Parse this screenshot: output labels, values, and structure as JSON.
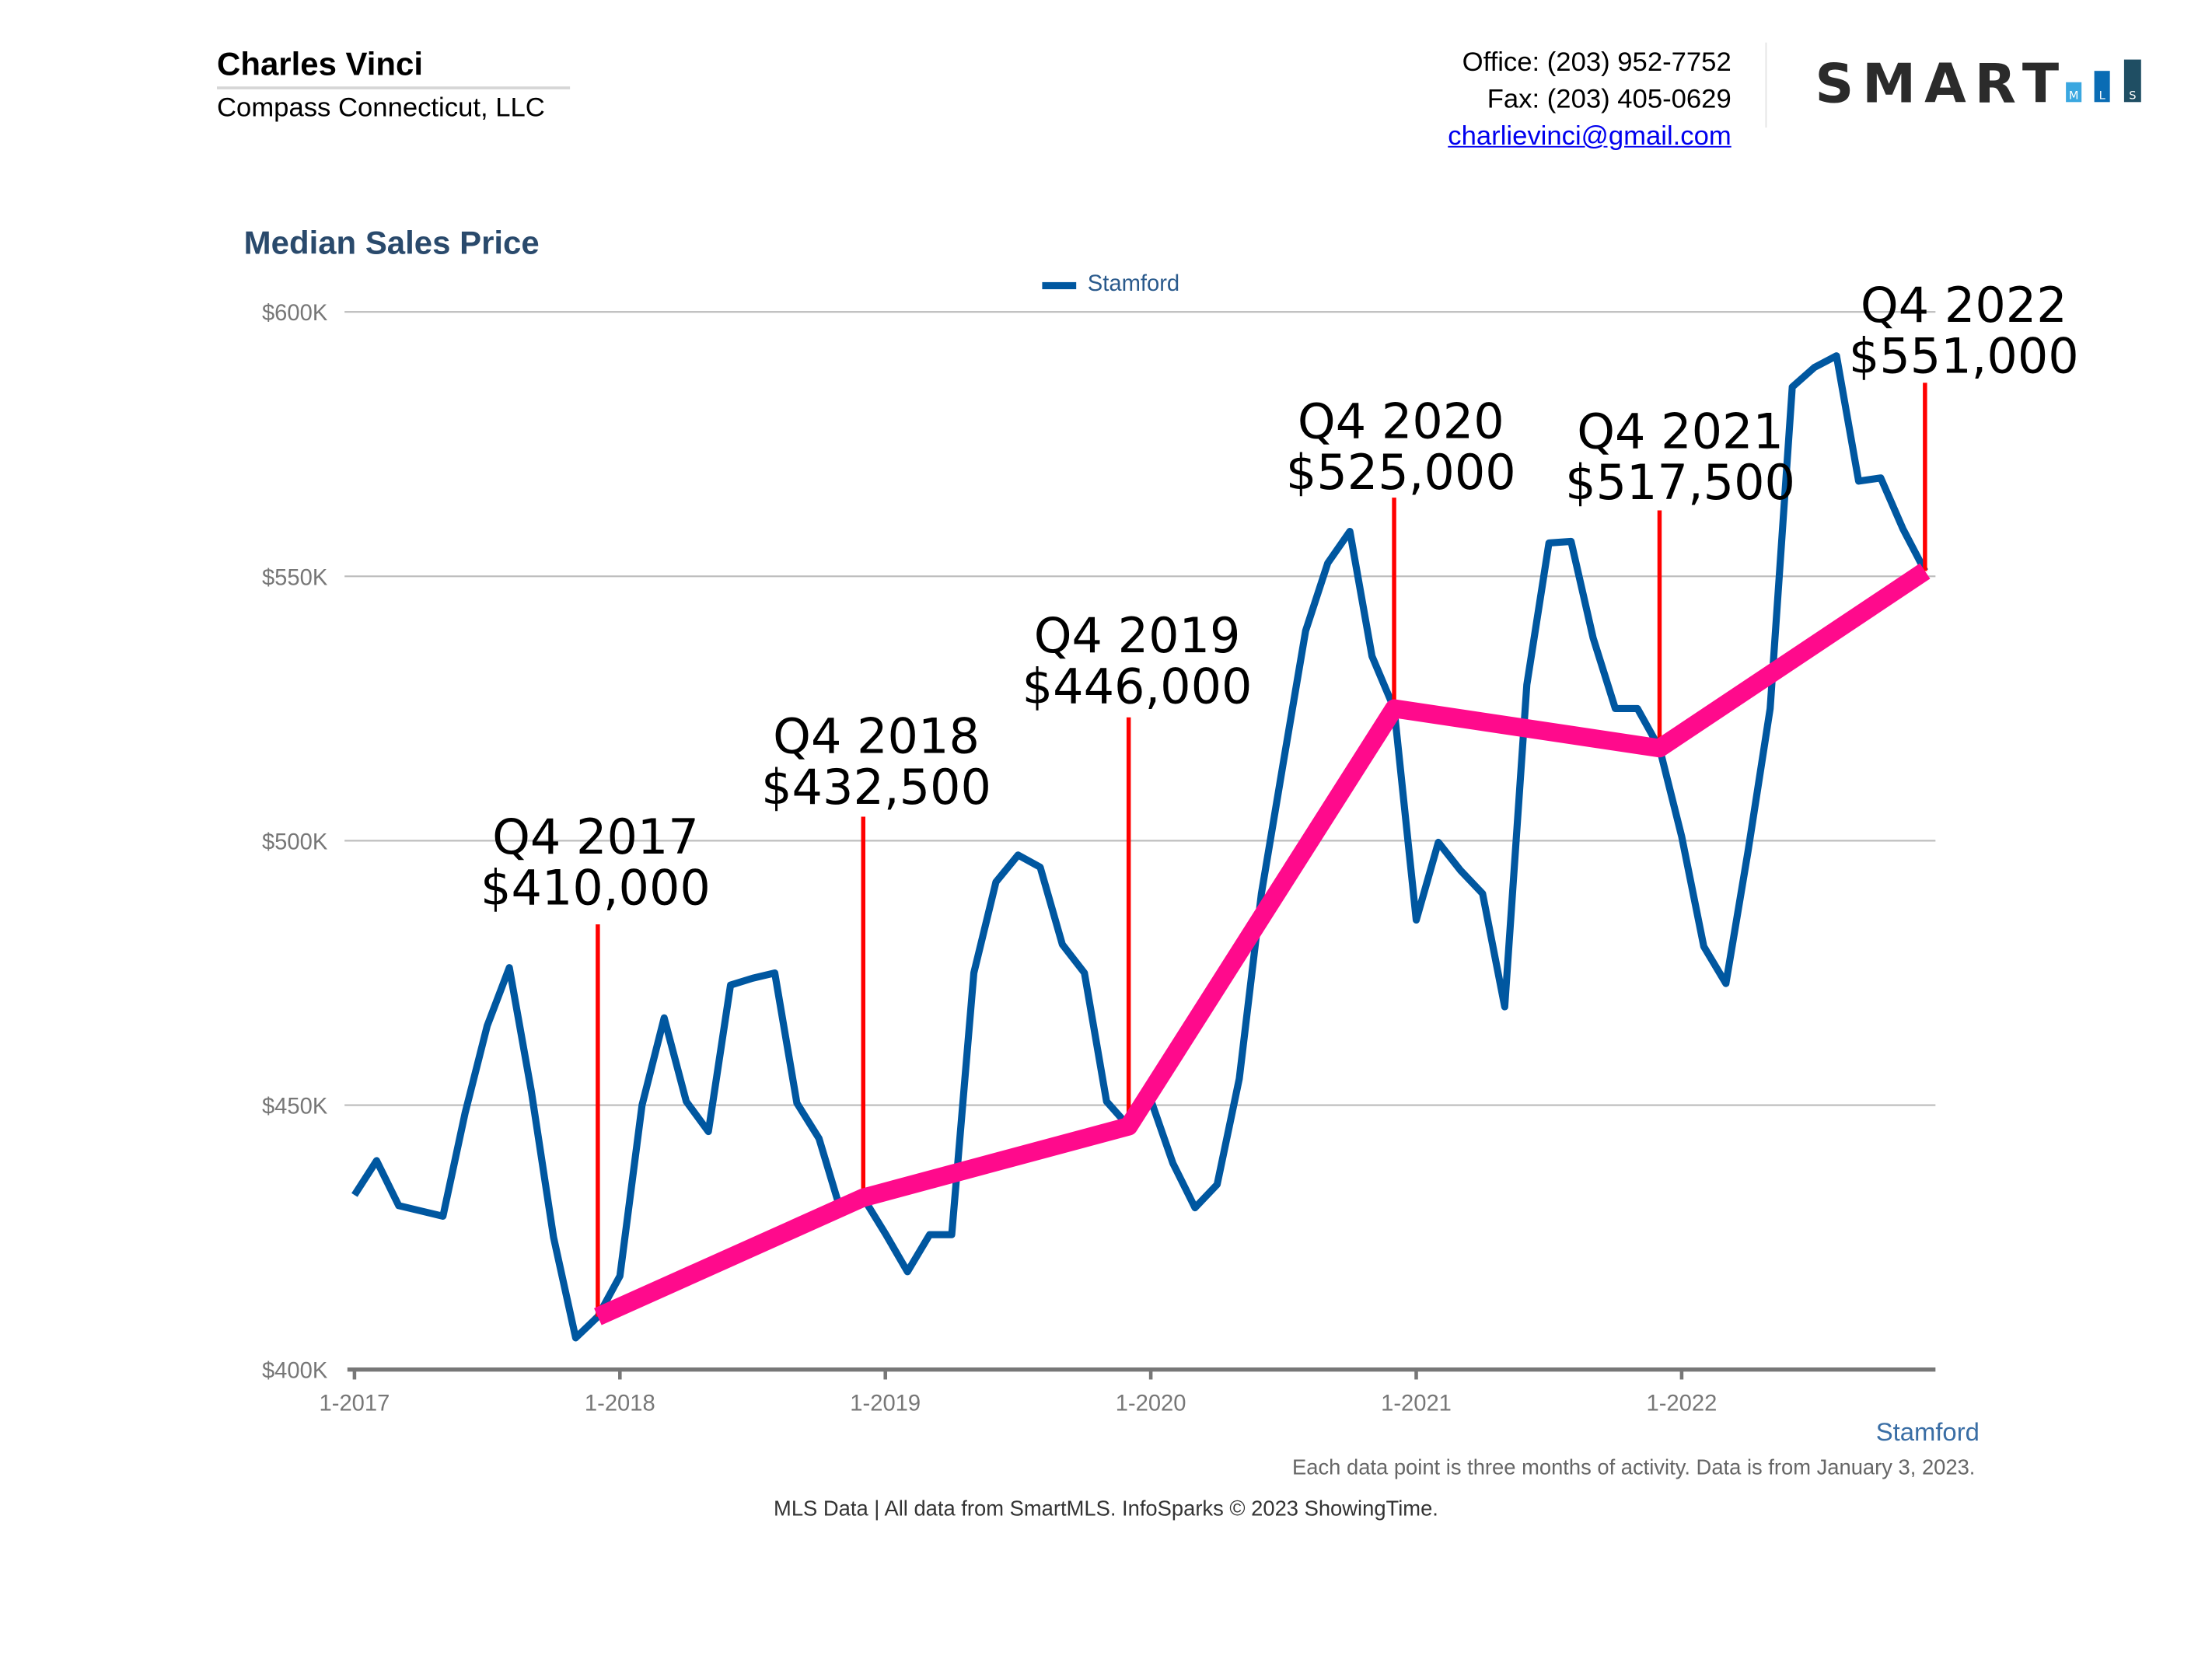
{
  "header": {
    "agent_name": "Charles Vinci",
    "company": "Compass Connecticut, LLC",
    "office": "Office: (203) 952-7752",
    "fax": "Fax: (203) 405-0629",
    "email": "charlievinci@gmail.com",
    "logo_text": "SMART",
    "logo_sub": [
      "M",
      "L",
      "S"
    ]
  },
  "colors": {
    "series": "#0057a0",
    "trend": "#ff0a8c",
    "annotation_line": "#ff0000",
    "title": "#2a4a6c"
  },
  "chart_data": {
    "type": "line",
    "title": "Median Sales Price",
    "legend": [
      "Stamford"
    ],
    "legend_position": "top-center",
    "grid": true,
    "ylim": [
      400000,
      600000
    ],
    "y_ticks": [
      "$400K",
      "$450K",
      "$500K",
      "$550K",
      "$600K"
    ],
    "x_ticks": [
      "1-2017",
      "1-2018",
      "1-2019",
      "1-2020",
      "1-2021",
      "1-2022"
    ],
    "x_start": "2017-01",
    "x_end": "2022-12",
    "series": [
      {
        "name": "Stamford",
        "values": [
          433000,
          439500,
          431000,
          430000,
          429000,
          448500,
          465000,
          476000,
          452500,
          425000,
          406000,
          410000,
          417700,
          450000,
          466500,
          450700,
          445000,
          472700,
          474000,
          475000,
          450400,
          443700,
          429800,
          432500,
          425700,
          418500,
          425500,
          425500,
          475000,
          492200,
          497300,
          495000,
          480400,
          475000,
          450700,
          446000,
          451000,
          439000,
          430600,
          435000,
          455000,
          490000,
          515000,
          539700,
          552500,
          558500,
          534900,
          525000,
          485000,
          499700,
          494400,
          490000,
          468600,
          529500,
          556300,
          556600,
          538300,
          525000,
          525000,
          517500,
          500800,
          480000,
          473000,
          498000,
          525000,
          585800,
          589500,
          591700,
          568000,
          568600,
          559000,
          551000
        ]
      }
    ],
    "trend": {
      "points": [
        {
          "label": "Q4 2017",
          "value": 410000,
          "value_label": "$410,000"
        },
        {
          "label": "Q4 2018",
          "value": 432500,
          "value_label": "$432,500"
        },
        {
          "label": "Q4 2019",
          "value": 446000,
          "value_label": "$446,000"
        },
        {
          "label": "Q4 2020",
          "value": 525000,
          "value_label": "$525,000"
        },
        {
          "label": "Q4 2021",
          "value": 517500,
          "value_label": "$517,500"
        },
        {
          "label": "Q4 2022",
          "value": 551000,
          "value_label": "$551,000"
        }
      ]
    },
    "series_label": "Stamford"
  },
  "footer": {
    "note": "Each data point is three months of activity. Data is from January 3, 2023.",
    "credit": "MLS Data | All data from SmartMLS. InfoSparks © 2023 ShowingTime."
  }
}
